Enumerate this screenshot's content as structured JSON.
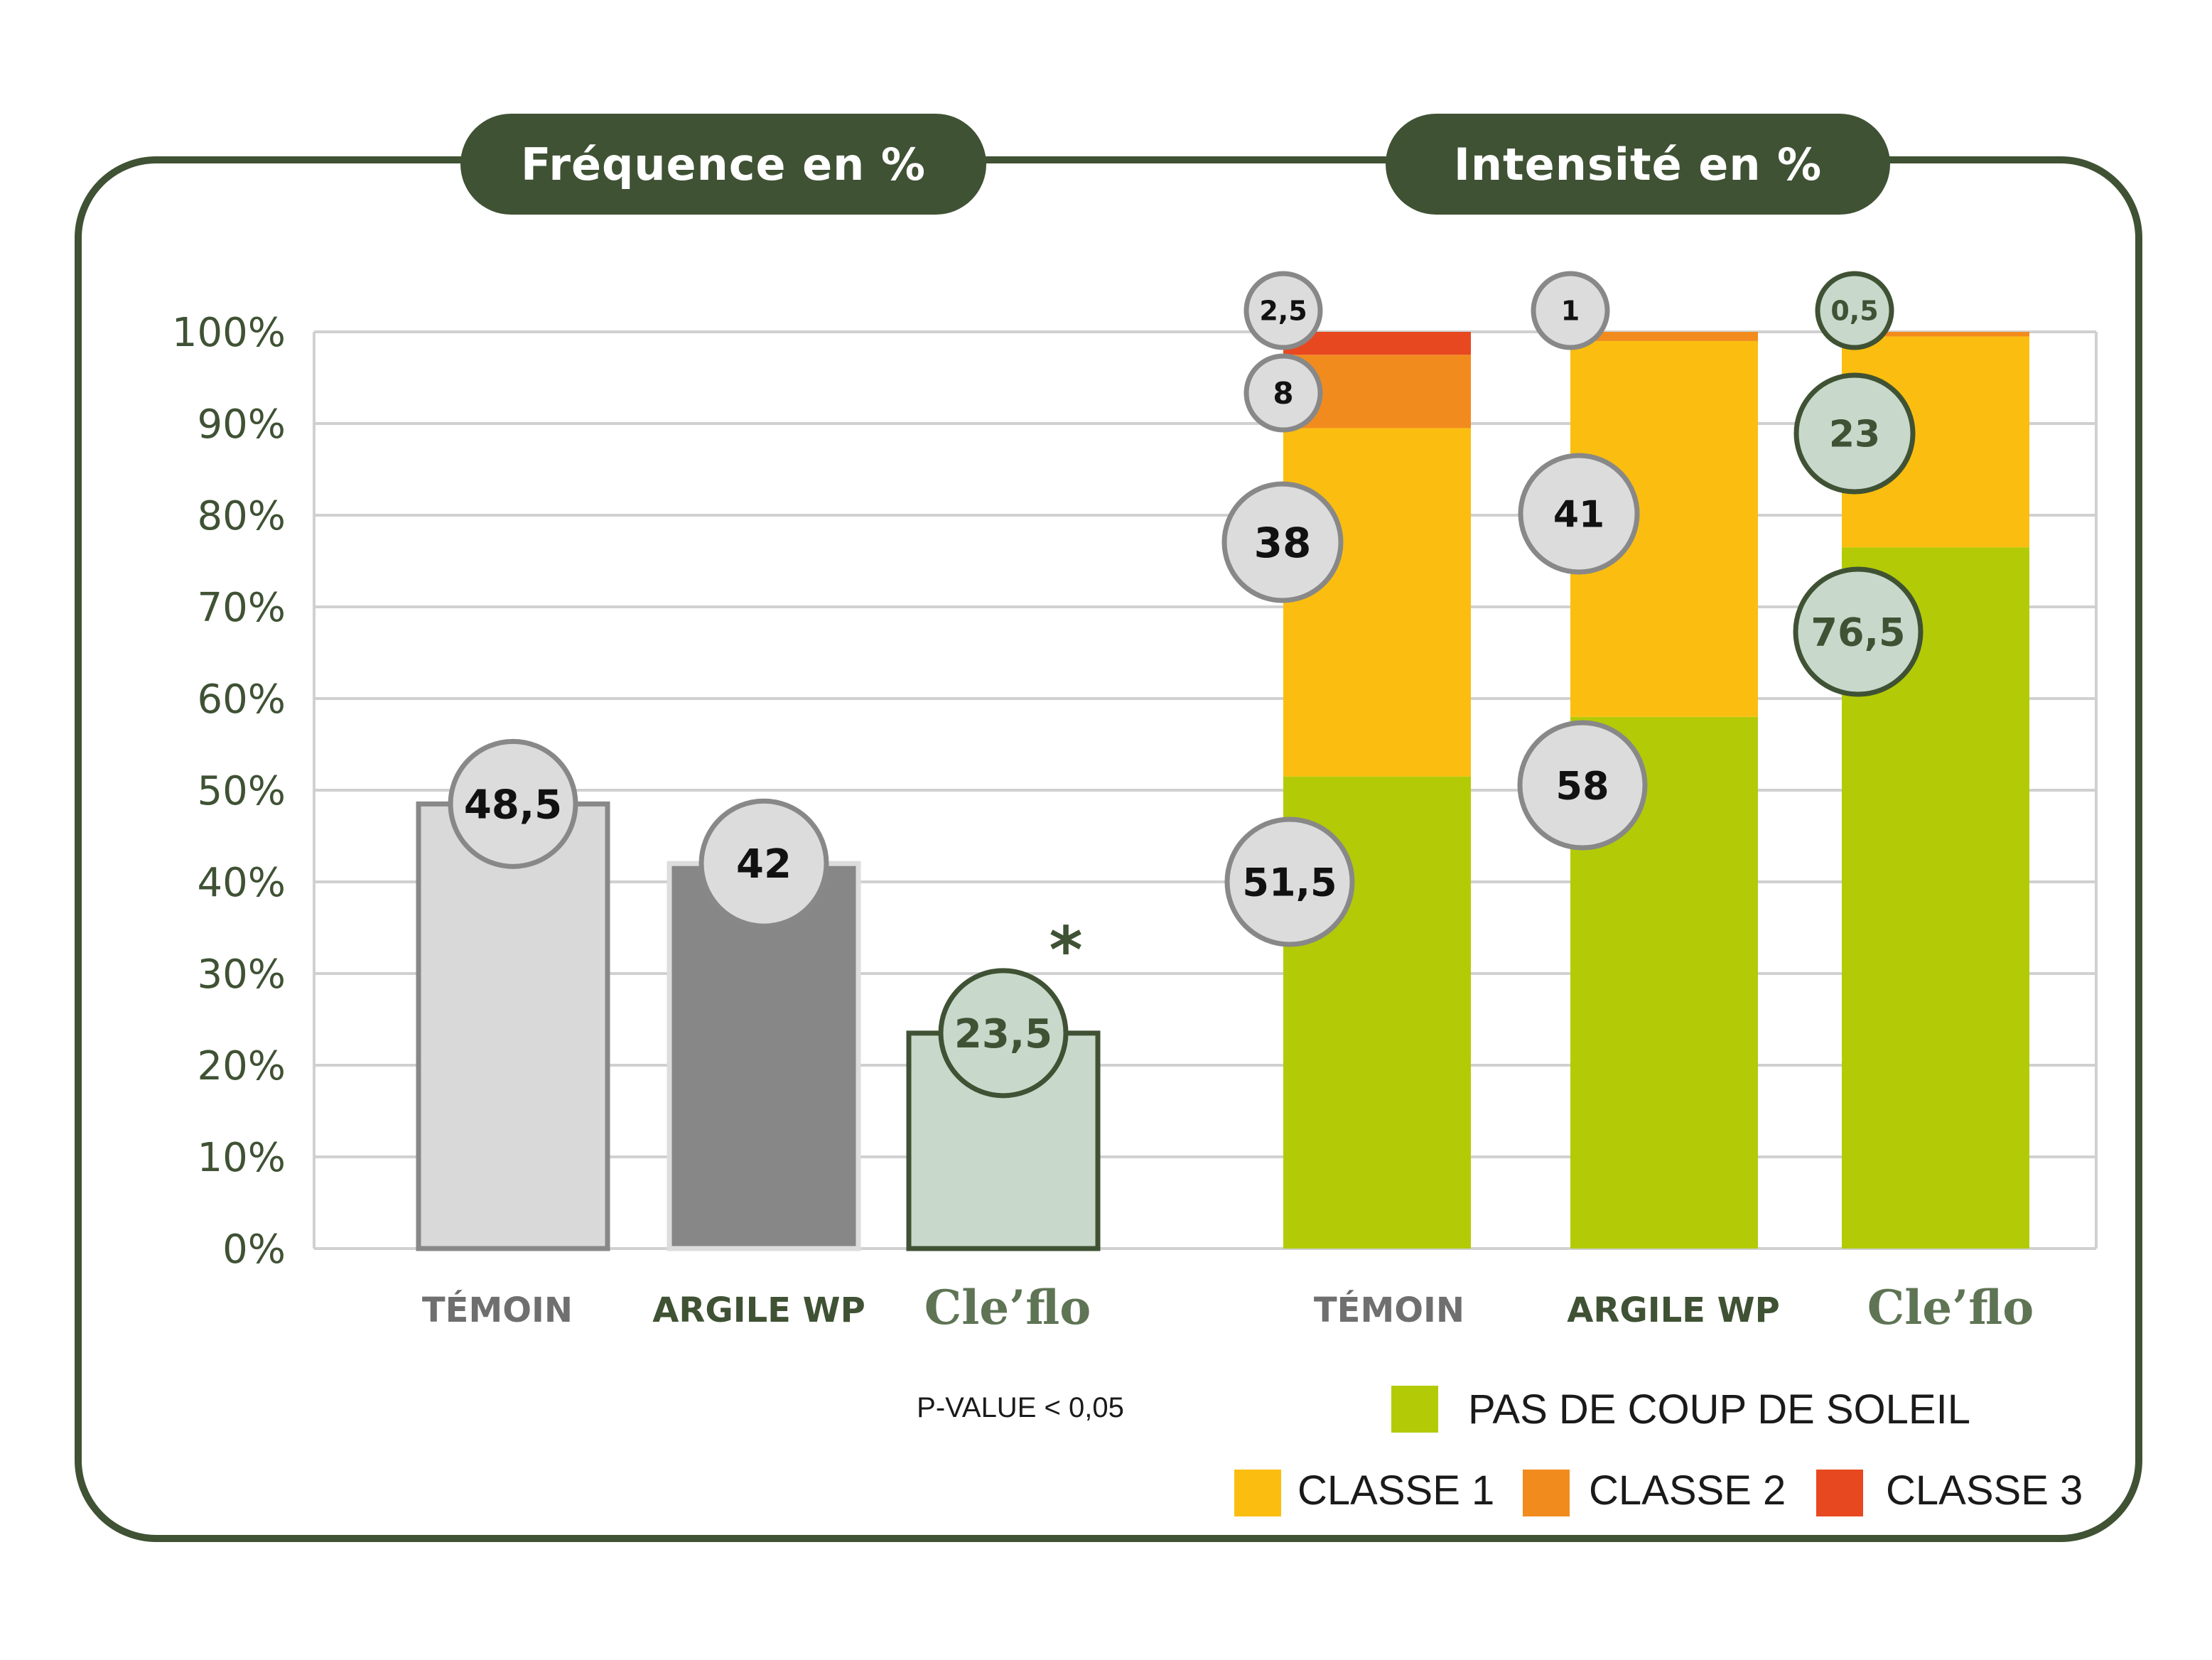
{
  "chart_data": [
    {
      "type": "bar",
      "title": "Fréquence en %",
      "categories": [
        "TÉMOIN",
        "ARGILE WP",
        "Cle’flo"
      ],
      "values": [
        48.5,
        42,
        23.5
      ],
      "value_labels": [
        "48,5",
        "42",
        "23,5"
      ],
      "ylim": [
        0,
        100
      ],
      "yticks": [
        "0%",
        "10%",
        "20%",
        "30%",
        "40%",
        "50%",
        "60%",
        "70%",
        "80%",
        "90%",
        "100%"
      ],
      "grid": true,
      "significance_marker": "*",
      "note": "P-VALUE < 0,05",
      "colors": [
        "#d9d9d9",
        "#878787",
        "#c8d9cb"
      ]
    },
    {
      "type": "bar",
      "stacked": true,
      "title": "Intensité en %",
      "categories": [
        "TÉMOIN",
        "ARGILE WP",
        "Cle’flo"
      ],
      "series": [
        {
          "name": "PAS DE COUP DE SOLEIL",
          "color": "#b3cb06",
          "values": [
            51.5,
            58,
            76.5
          ],
          "labels": [
            "51,5",
            "58",
            "76,5"
          ]
        },
        {
          "name": "CLASSE 1",
          "color": "#fbbe10",
          "values": [
            38,
            41,
            23
          ],
          "labels": [
            "38",
            "41",
            "23"
          ]
        },
        {
          "name": "CLASSE 2",
          "color": "#f28b1e",
          "values": [
            8,
            1,
            0.5
          ],
          "labels": [
            "8",
            "1",
            "0,5"
          ]
        },
        {
          "name": "CLASSE 3",
          "color": "#e8481f",
          "values": [
            2.5,
            0,
            0
          ],
          "labels": [
            "2,5",
            "",
            ""
          ]
        }
      ],
      "ylim": [
        0,
        100
      ],
      "grid": true,
      "legend_position": "bottom-right"
    }
  ]
}
